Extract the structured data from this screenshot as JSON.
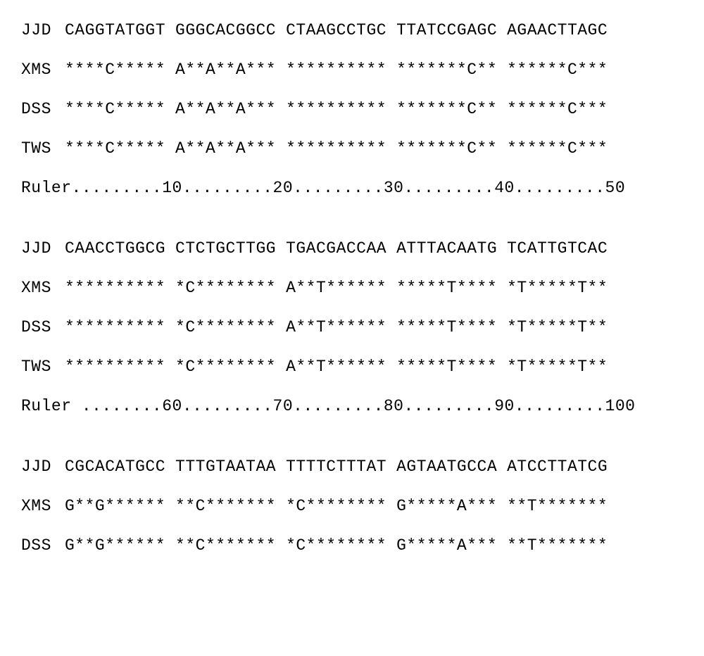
{
  "alignment": {
    "font_family": "Courier New",
    "font_size": 23,
    "background_color": "#ffffff",
    "text_color": "#000000",
    "blocks": [
      {
        "sequences": [
          {
            "label": "JJD",
            "segments": [
              "CAGGTATGGT",
              "GGGCACGGCC",
              "CTAAGCCTGC",
              "TTATCCGAGC",
              "AGAACTTAGC"
            ]
          },
          {
            "label": "XMS",
            "segments": [
              "****C*****",
              "A**A**A***",
              "**********",
              "*******C**",
              "******C***"
            ]
          },
          {
            "label": "DSS",
            "segments": [
              "****C*****",
              "A**A**A***",
              "**********",
              "*******C**",
              "******C***"
            ]
          },
          {
            "label": "TWS",
            "segments": [
              "****C*****",
              "A**A**A***",
              "**********",
              "*******C**",
              "******C***"
            ]
          }
        ],
        "ruler": "Ruler.........10.........20.........30.........40.........50"
      },
      {
        "sequences": [
          {
            "label": "JJD",
            "segments": [
              "CAACCTGGCG",
              "CTCTGCTTGG",
              "TGACGACCAA",
              "ATTTACAATG",
              "TCATTGTCAC"
            ]
          },
          {
            "label": "XMS",
            "segments": [
              "**********",
              "*C********",
              "A**T******",
              "*****T****",
              "*T*****T**"
            ]
          },
          {
            "label": "DSS",
            "segments": [
              "**********",
              "*C********",
              "A**T******",
              "*****T****",
              "*T*****T**"
            ]
          },
          {
            "label": "TWS",
            "segments": [
              "**********",
              "*C********",
              "A**T******",
              "*****T****",
              "*T*****T**"
            ]
          }
        ],
        "ruler": "Ruler ........60.........70.........80.........90.........100"
      },
      {
        "sequences": [
          {
            "label": "JJD",
            "segments": [
              "CGCACATGCC",
              "TTTGTAATAA",
              "TTTTCTTTAT",
              "AGTAATGCCA",
              "ATCCTTATCG"
            ]
          },
          {
            "label": "XMS",
            "segments": [
              "G**G******",
              "**C*******",
              "*C********",
              "G*****A***",
              "**T*******"
            ]
          },
          {
            "label": "DSS",
            "segments": [
              "G**G******",
              "**C*******",
              "*C********",
              "G*****A***",
              "**T*******"
            ]
          }
        ],
        "ruler": ""
      }
    ]
  }
}
